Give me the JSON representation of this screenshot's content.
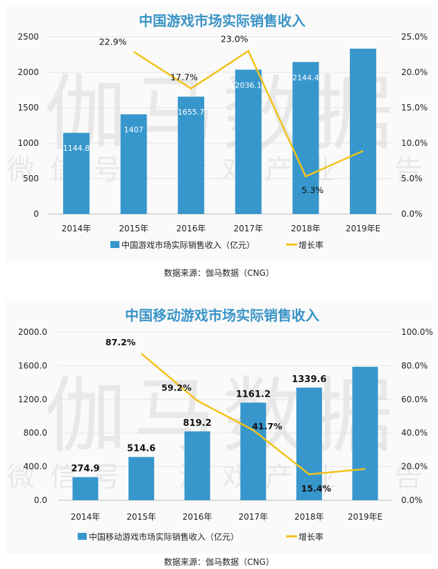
{
  "chart_data": [
    {
      "type": "bar+line",
      "title": "中国游戏市场实际销售收入",
      "categories": [
        "2014年",
        "2015年",
        "2016年",
        "2017年",
        "2018年",
        "2019年E"
      ],
      "series": [
        {
          "name": "中国游戏市场实际销售收入（亿元）",
          "type": "bar",
          "axis": "left",
          "values": [
            1144.8,
            1407,
            1655.7,
            2036.1,
            2144.4,
            2333
          ],
          "labels": [
            "1144.8",
            "1407",
            "1655.7",
            "2036.1",
            "2144.4",
            ""
          ]
        },
        {
          "name": "增长率",
          "type": "line",
          "axis": "right",
          "values": [
            null,
            22.9,
            17.7,
            23.0,
            5.3,
            8.9
          ],
          "labels": [
            "",
            "22.9%",
            "17.7%",
            "23.0%",
            "5.3%",
            ""
          ]
        }
      ],
      "left_ticks": [
        "0",
        "500",
        "1000",
        "1500",
        "2000",
        "2500"
      ],
      "right_ticks": [
        "0.0%",
        "5.0%",
        "10.0%",
        "15.0%",
        "20.0%",
        "25.0%"
      ],
      "ylim_left": [
        0,
        2500
      ],
      "ylim_right": [
        0,
        25
      ],
      "legend": "bottom",
      "source": "数据来源：伽马数据（CNG）"
    },
    {
      "type": "bar+line",
      "title": "中国移动游戏市场实际销售收入",
      "categories": [
        "2014年",
        "2015年",
        "2016年",
        "2017年",
        "2018年",
        "2019年E"
      ],
      "series": [
        {
          "name": "中国移动游戏市场实际销售收入（亿元）",
          "type": "bar",
          "axis": "left",
          "values": [
            274.9,
            514.6,
            819.2,
            1161.2,
            1339.6,
            1587
          ],
          "labels": [
            "274.9",
            "514.6",
            "819.2",
            "1161.2",
            "1339.6",
            ""
          ]
        },
        {
          "name": "增长率",
          "type": "line",
          "axis": "right",
          "values": [
            null,
            87.2,
            59.2,
            41.7,
            15.4,
            18.6
          ],
          "labels": [
            "",
            "87.2%",
            "59.2%",
            "41.7%",
            "15.4%",
            ""
          ]
        }
      ],
      "left_ticks": [
        "0.0",
        "400.0",
        "800.0",
        "1200.0",
        "1600.0",
        "2000.0"
      ],
      "right_ticks": [
        "0.0%",
        "20.0%",
        "40.0%",
        "60.0%",
        "80.0%",
        "100.0%"
      ],
      "ylim_left": [
        0,
        2000
      ],
      "ylim_right": [
        0,
        100
      ],
      "legend": "bottom",
      "source": "数据来源：伽马数据（CNG）"
    }
  ],
  "watermark": {
    "big": "伽马数据",
    "small": "微信号：游戏产业报告"
  },
  "colors": {
    "bar": "#3797cc",
    "line": "#f2c21b",
    "title": "#3a94c6",
    "grid": "#e4e4e4"
  }
}
